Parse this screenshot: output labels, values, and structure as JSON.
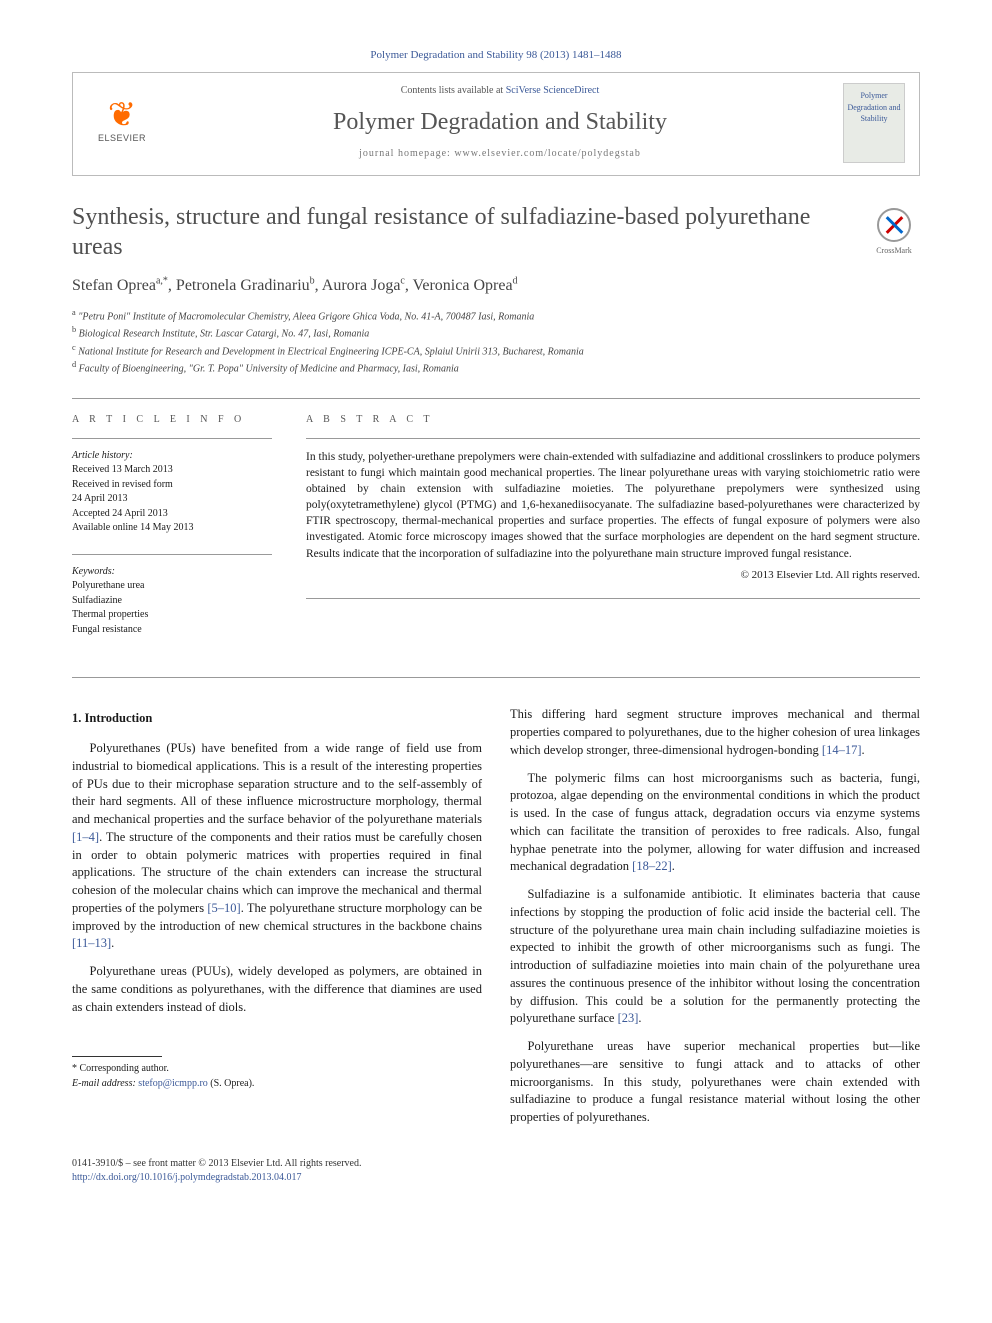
{
  "citation": "Polymer Degradation and Stability 98 (2013) 1481–1488",
  "header": {
    "publisher": "ELSEVIER",
    "contents_prefix": "Contents lists available at ",
    "contents_link": "SciVerse ScienceDirect",
    "journal": "Polymer Degradation and Stability",
    "homepage_prefix": "journal homepage: ",
    "homepage": "www.elsevier.com/locate/polydegstab",
    "cover_text": "Polymer Degradation and Stability"
  },
  "title": "Synthesis, structure and fungal resistance of sulfadiazine-based polyurethane ureas",
  "crossmark": "CrossMark",
  "authors": [
    {
      "name": "Stefan Oprea",
      "sup": "a,*"
    },
    {
      "name": "Petronela Gradinariu",
      "sup": "b"
    },
    {
      "name": "Aurora Joga",
      "sup": "c"
    },
    {
      "name": "Veronica Oprea",
      "sup": "d"
    }
  ],
  "affiliations": [
    {
      "sup": "a",
      "text": "\"Petru Poni\" Institute of Macromolecular Chemistry, Aleea Grigore Ghica Voda, No. 41-A, 700487 Iasi, Romania"
    },
    {
      "sup": "b",
      "text": "Biological Research Institute, Str. Lascar Catargi, No. 47, Iasi, Romania"
    },
    {
      "sup": "c",
      "text": "National Institute for Research and Development in Electrical Engineering ICPE-CA, Splaiul Unirii 313, Bucharest, Romania"
    },
    {
      "sup": "d",
      "text": "Faculty of Bioengineering, \"Gr. T. Popa\" University of Medicine and Pharmacy, Iasi, Romania"
    }
  ],
  "info": {
    "heading": "A R T I C L E   I N F O",
    "history_label": "Article history:",
    "history": [
      "Received 13 March 2013",
      "Received in revised form",
      "24 April 2013",
      "Accepted 24 April 2013",
      "Available online 14 May 2013"
    ],
    "keywords_label": "Keywords:",
    "keywords": [
      "Polyurethane urea",
      "Sulfadiazine",
      "Thermal properties",
      "Fungal resistance"
    ]
  },
  "abstract": {
    "heading": "A B S T R A C T",
    "text": "In this study, polyether-urethane prepolymers were chain-extended with sulfadiazine and additional crosslinkers to produce polymers resistant to fungi which maintain good mechanical properties. The linear polyurethane ureas with varying stoichiometric ratio were obtained by chain extension with sulfadiazine moieties. The polyurethane prepolymers were synthesized using poly(oxytetramethylene) glycol (PTMG) and 1,6-hexanediisocyanate. The sulfadiazine based-polyurethanes were characterized by FTIR spectroscopy, thermal-mechanical properties and surface properties. The effects of fungal exposure of polymers were also investigated. Atomic force microscopy images showed that the surface morphologies are dependent on the hard segment structure. Results indicate that the incorporation of sulfadiazine into the polyurethane main structure improved fungal resistance.",
    "copyright": "© 2013 Elsevier Ltd. All rights reserved."
  },
  "body": {
    "section_num": "1.",
    "section_title": "Introduction",
    "p1a": "Polyurethanes (PUs) have benefited from a wide range of field use from industrial to biomedical applications. This is a result of the interesting properties of PUs due to their microphase separation structure and to the self-assembly of their hard segments. All of these influence microstructure morphology, thermal and mechanical properties and the surface behavior of the polyurethane materials ",
    "p1_ref1": "[1–4]",
    "p1b": ". The structure of the components and their ratios must be carefully chosen in order to obtain polymeric matrices with properties required in final applications. The structure of the chain extenders can increase the structural cohesion of the molecular chains which can improve the mechanical and thermal properties of the polymers ",
    "p1_ref2": "[5–10]",
    "p1c": ". The polyurethane structure morphology can be improved by the introduction of new chemical structures in the backbone chains ",
    "p1_ref3": "[11–13]",
    "p1d": ".",
    "p2": "Polyurethane ureas (PUUs), widely developed as polymers, are obtained in the same conditions as polyurethanes, with the difference that diamines are used as chain extenders instead of diols.",
    "p3a": "This differing hard segment structure improves mechanical and thermal properties compared to polyurethanes, due to the higher cohesion of urea linkages which develop stronger, three-dimensional hydrogen-bonding ",
    "p3_ref": "[14–17]",
    "p3b": ".",
    "p4a": "The polymeric films can host microorganisms such as bacteria, fungi, protozoa, algae depending on the environmental conditions in which the product is used. In the case of fungus attack, degradation occurs via enzyme systems which can facilitate the transition of peroxides to free radicals. Also, fungal hyphae penetrate into the polymer, allowing for water diffusion and increased mechanical degradation ",
    "p4_ref": "[18–22]",
    "p4b": ".",
    "p5a": "Sulfadiazine is a sulfonamide antibiotic. It eliminates bacteria that cause infections by stopping the production of folic acid inside the bacterial cell. The structure of the polyurethane urea main chain including sulfadiazine moieties is expected to inhibit the growth of other microorganisms such as fungi. The introduction of sulfadiazine moieties into main chain of the polyurethane urea assures the continuous presence of the inhibitor without losing the concentration by diffusion. This could be a solution for the permanently protecting the polyurethane surface ",
    "p5_ref": "[23]",
    "p5b": ".",
    "p6": "Polyurethane ureas have superior mechanical properties but—like polyurethanes—are sensitive to fungi attack and to attacks of other microorganisms. In this study, polyurethanes were chain extended with sulfadiazine to produce a fungal resistance material without losing the other properties of polyurethanes."
  },
  "footer": {
    "corr_label": "* Corresponding author.",
    "email_label": "E-mail address: ",
    "email": "stefop@icmpp.ro",
    "email_suffix": " (S. Oprea).",
    "issn_line": "0141-3910/$ – see front matter © 2013 Elsevier Ltd. All rights reserved.",
    "doi": "http://dx.doi.org/10.1016/j.polymdegradstab.2013.04.017"
  },
  "colors": {
    "link": "#3b5998",
    "text": "#1a1a1a",
    "heading_gray": "#505050",
    "elsevier_orange": "#ff6b00"
  }
}
